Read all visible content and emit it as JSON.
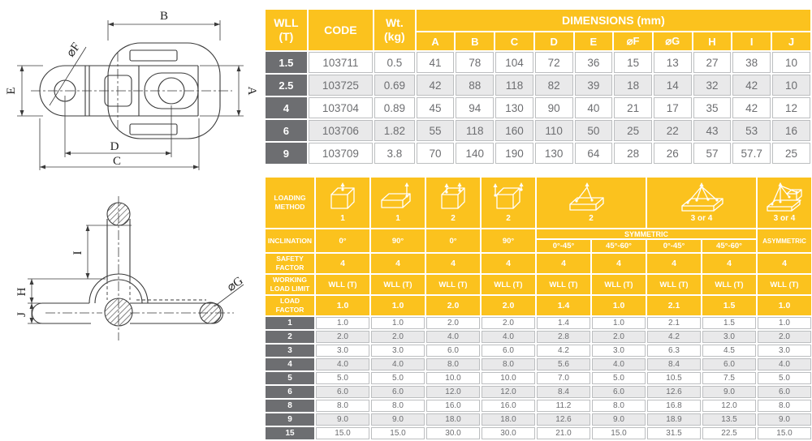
{
  "colors": {
    "accent_yellow": "#FBC21E",
    "header_gray": "#6D6E71",
    "alt_row_gray": "#E9E9EA",
    "cell_border_gray": "#BCBEC0",
    "data_text_gray": "#6D6E71",
    "drawing_line": "#3A3A3A"
  },
  "drawings": {
    "top_view": {
      "description": "top view of weld-on lifting point",
      "dim_labels": {
        "b": "B",
        "a": "A",
        "e": "E",
        "f": "⌀F",
        "d": "D",
        "c": "C"
      }
    },
    "side_view": {
      "description": "side section view of weld-on lifting point",
      "dim_labels": {
        "i": "I",
        "h": "H",
        "j": "J",
        "g": "⌀G"
      }
    }
  },
  "spec_table": {
    "headers": {
      "wll": "WLL\n(T)",
      "code": "CODE",
      "wt": "Wt.\n(kg)",
      "dimensions": "DIMENSIONS (mm)",
      "dims": [
        "A",
        "B",
        "C",
        "D",
        "E",
        "⌀F",
        "⌀G",
        "H",
        "I",
        "J"
      ]
    },
    "rows": [
      {
        "wll": "1.5",
        "code": "103711",
        "wt": "0.5",
        "dims": [
          "41",
          "78",
          "104",
          "72",
          "36",
          "15",
          "13",
          "27",
          "38",
          "10"
        ]
      },
      {
        "wll": "2.5",
        "code": "103725",
        "wt": "0.69",
        "dims": [
          "42",
          "88",
          "118",
          "82",
          "39",
          "18",
          "14",
          "32",
          "42",
          "10"
        ]
      },
      {
        "wll": "4",
        "code": "103704",
        "wt": "0.89",
        "dims": [
          "45",
          "94",
          "130",
          "90",
          "40",
          "21",
          "17",
          "35",
          "42",
          "12"
        ]
      },
      {
        "wll": "6",
        "code": "103706",
        "wt": "1.82",
        "dims": [
          "55",
          "118",
          "160",
          "110",
          "50",
          "25",
          "22",
          "43",
          "53",
          "16"
        ]
      },
      {
        "wll": "9",
        "code": "103709",
        "wt": "3.8",
        "dims": [
          "70",
          "140",
          "190",
          "130",
          "64",
          "28",
          "26",
          "57",
          "57.7",
          "25"
        ]
      }
    ]
  },
  "loading_table": {
    "row_labels": {
      "loading_method": "LOADING\nMETHOD",
      "inclination": "INCLINATION",
      "safety_factor": "SAFETY\nFACTOR",
      "working_load_limit": "WORKING\nLOAD LIMIT",
      "load_factor": "LOAD\nFACTOR"
    },
    "methods": [
      {
        "icon": "box-1-sling-top",
        "count": "1",
        "span": 1
      },
      {
        "icon": "box-1-sling-corner",
        "count": "1",
        "span": 1
      },
      {
        "icon": "box-2-slings-vertical",
        "count": "2",
        "span": 1
      },
      {
        "icon": "box-2-slings-side",
        "count": "2",
        "span": 1
      },
      {
        "icon": "pallet-2-slings-apex",
        "count": "2",
        "span": 2
      },
      {
        "icon": "pallet-4-slings-apex",
        "count": "3 or 4",
        "span": 2
      },
      {
        "icon": "lshape-4-slings-apex",
        "count": "3 or 4",
        "span": 1
      }
    ],
    "inclination": {
      "simple": [
        "0°",
        "90°",
        "0°",
        "90°"
      ],
      "symmetric_label": "SYMMETRIC",
      "symmetric_subs": [
        "0°-45°",
        "45°-60°",
        "0°-45°",
        "45°-60°"
      ],
      "asymmetric_label": "ASYMMETRIC"
    },
    "safety_factors": [
      "4",
      "4",
      "4",
      "4",
      "4",
      "4",
      "4",
      "4",
      "4"
    ],
    "wll_units": [
      "WLL (T)",
      "WLL (T)",
      "WLL (T)",
      "WLL (T)",
      "WLL (T)",
      "WLL (T)",
      "WLL (T)",
      "WLL (T)",
      "WLL (T)"
    ],
    "load_factors": [
      "1.0",
      "1.0",
      "2.0",
      "2.0",
      "1.4",
      "1.0",
      "2.1",
      "1.5",
      "1.0"
    ],
    "data_rows": [
      {
        "label": "1",
        "values": [
          "1.0",
          "1.0",
          "2.0",
          "2.0",
          "1.4",
          "1.0",
          "2.1",
          "1.5",
          "1.0"
        ]
      },
      {
        "label": "2",
        "values": [
          "2.0",
          "2.0",
          "4.0",
          "4.0",
          "2.8",
          "2.0",
          "4.2",
          "3.0",
          "2.0"
        ]
      },
      {
        "label": "3",
        "values": [
          "3.0",
          "3.0",
          "6.0",
          "6.0",
          "4.2",
          "3.0",
          "6.3",
          "4.5",
          "3.0"
        ]
      },
      {
        "label": "4",
        "values": [
          "4.0",
          "4.0",
          "8.0",
          "8.0",
          "5.6",
          "4.0",
          "8.4",
          "6.0",
          "4.0"
        ]
      },
      {
        "label": "5",
        "values": [
          "5.0",
          "5.0",
          "10.0",
          "10.0",
          "7.0",
          "5.0",
          "10.5",
          "7.5",
          "5.0"
        ]
      },
      {
        "label": "6",
        "values": [
          "6.0",
          "6.0",
          "12.0",
          "12.0",
          "8.4",
          "6.0",
          "12.6",
          "9.0",
          "6.0"
        ]
      },
      {
        "label": "8",
        "values": [
          "8.0",
          "8.0",
          "16.0",
          "16.0",
          "11.2",
          "8.0",
          "16.8",
          "12.0",
          "8.0"
        ]
      },
      {
        "label": "9",
        "values": [
          "9.0",
          "9.0",
          "18.0",
          "18.0",
          "12.6",
          "9.0",
          "18.9",
          "13.5",
          "9.0"
        ]
      },
      {
        "label": "15",
        "values": [
          "15.0",
          "15.0",
          "30.0",
          "30.0",
          "21.0",
          "15.0",
          "31.5",
          "22.5",
          "15.0"
        ]
      }
    ]
  }
}
